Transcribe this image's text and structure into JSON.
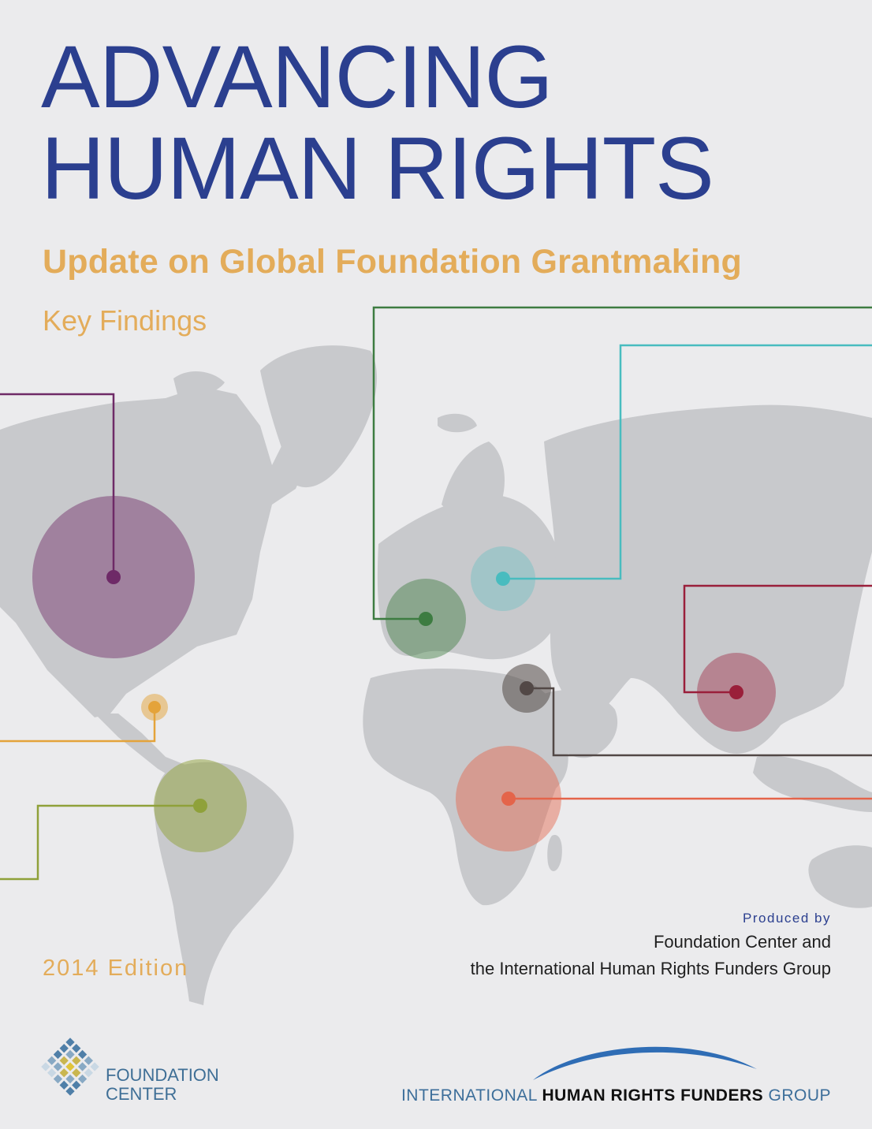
{
  "cover": {
    "title_line1": "ADVANCING",
    "title_line2": "HUMAN RIGHTS",
    "subtitle": "Update on Global Foundation Grantmaking",
    "section": "Key Findings",
    "edition": "2014 Edition"
  },
  "producers": {
    "label": "Produced by",
    "line1": "Foundation Center and",
    "line2": "the International Human Rights Funders Group"
  },
  "logos": {
    "foundation_center_line1": "FOUNDATION",
    "foundation_center_line2": "CENTER",
    "ihrfg_prefix": "INTERNATIONAL ",
    "ihrfg_bold": "HUMAN RIGHTS FUNDERS",
    "ihrfg_suffix": " GROUP"
  },
  "colors": {
    "title": "#2b3f8f",
    "accent": "#e3ac5a",
    "background": "#ebebed",
    "map_land": "#c8c9cc",
    "north_america": "#6e2a67",
    "caribbean": "#e4a33a",
    "latin_america": "#8fa13a",
    "western_europe": "#3d7c41",
    "eastern_europe": "#48bcbf",
    "middle_east": "#524846",
    "sub_saharan_africa": "#e4644a",
    "asia_pacific": "#9a1f3a"
  }
}
